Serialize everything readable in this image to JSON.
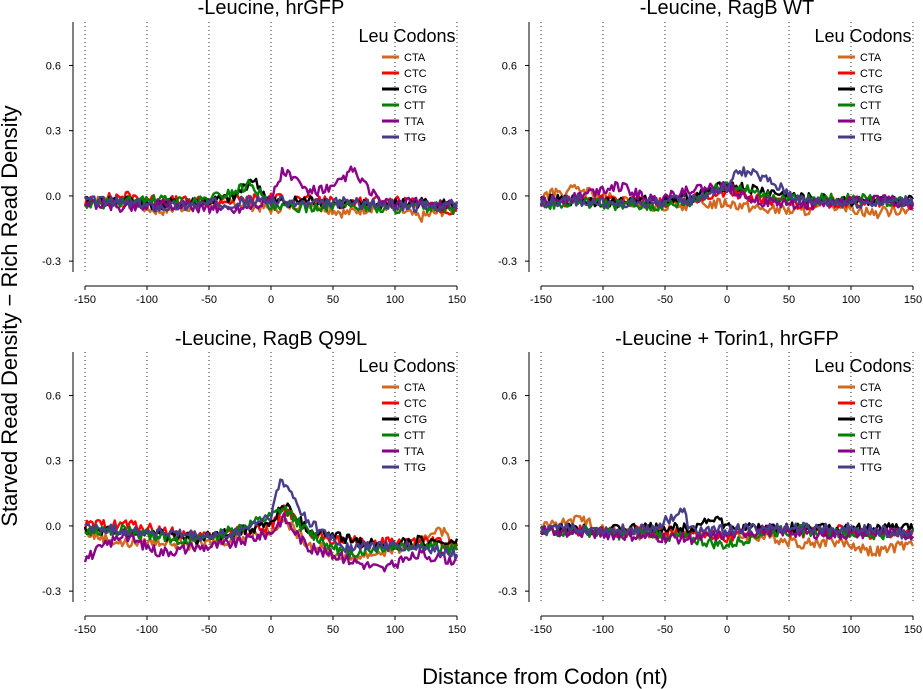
{
  "figure": {
    "ylabel": "Starved Read Density − Rich Read Density",
    "xlabel": "Distance from Codon (nt)"
  },
  "legend": {
    "title": "Leu Codons",
    "placement": "top-right",
    "entries": [
      {
        "name": "CTA",
        "color": "#d2691e"
      },
      {
        "name": "CTC",
        "color": "#ff0000"
      },
      {
        "name": "CTG",
        "color": "#000000"
      },
      {
        "name": "CTT",
        "color": "#008000"
      },
      {
        "name": "TTA",
        "color": "#8b008b"
      },
      {
        "name": "TTG",
        "color": "#483d8b"
      }
    ]
  },
  "chart_data": [
    {
      "type": "line",
      "title": "-Leucine, hrGFP",
      "xlim": [
        -150,
        150
      ],
      "ylim": [
        -0.35,
        0.8
      ],
      "xticks": [
        "-150",
        "-100",
        "-50",
        "0",
        "50",
        "100",
        "150"
      ],
      "yticks": [
        "-0.3",
        "0.0",
        "0.3",
        "0.6"
      ],
      "grid": "vertical dotted at x ticks",
      "series": [
        {
          "name": "CTA",
          "x": [
            -150,
            -120,
            -90,
            -60,
            -30,
            0,
            30,
            60,
            90,
            120,
            150
          ],
          "y": [
            -0.02,
            -0.03,
            -0.07,
            -0.04,
            -0.03,
            -0.06,
            -0.03,
            -0.08,
            -0.04,
            -0.1,
            -0.05
          ]
        },
        {
          "name": "CTC",
          "x": [
            -150,
            -120,
            -90,
            -60,
            -30,
            0,
            30,
            60,
            90,
            120,
            150
          ],
          "y": [
            -0.03,
            0.0,
            -0.02,
            -0.03,
            -0.02,
            -0.01,
            -0.02,
            -0.03,
            -0.02,
            -0.04,
            -0.08
          ]
        },
        {
          "name": "CTG",
          "x": [
            -150,
            -120,
            -90,
            -60,
            -30,
            -15,
            0,
            30,
            60,
            90,
            120,
            150
          ],
          "y": [
            -0.03,
            -0.02,
            -0.04,
            -0.03,
            -0.01,
            0.08,
            -0.03,
            -0.02,
            -0.04,
            -0.04,
            -0.03,
            -0.04
          ]
        },
        {
          "name": "CTT",
          "x": [
            -150,
            -120,
            -90,
            -60,
            -30,
            -15,
            0,
            30,
            60,
            90,
            120,
            150
          ],
          "y": [
            -0.04,
            -0.03,
            -0.02,
            -0.03,
            0.02,
            0.06,
            -0.06,
            -0.05,
            -0.04,
            -0.06,
            -0.05,
            -0.06
          ]
        },
        {
          "name": "TTA",
          "x": [
            -150,
            -120,
            -90,
            -60,
            -30,
            0,
            10,
            30,
            50,
            65,
            90,
            120,
            150
          ],
          "y": [
            -0.03,
            -0.05,
            -0.04,
            -0.05,
            -0.06,
            -0.02,
            0.12,
            0.02,
            0.03,
            0.12,
            -0.04,
            -0.03,
            -0.05
          ]
        },
        {
          "name": "TTG",
          "x": [
            -150,
            -120,
            -90,
            -60,
            -30,
            0,
            30,
            60,
            90,
            120,
            150
          ],
          "y": [
            -0.02,
            -0.03,
            -0.05,
            -0.04,
            -0.03,
            -0.02,
            -0.04,
            -0.03,
            -0.04,
            -0.05,
            -0.04
          ]
        }
      ]
    },
    {
      "type": "line",
      "title": "-Leucine, RagB WT",
      "xlim": [
        -150,
        150
      ],
      "ylim": [
        -0.35,
        0.8
      ],
      "xticks": [
        "-150",
        "-100",
        "-50",
        "0",
        "50",
        "100",
        "150"
      ],
      "yticks": [
        "-0.3",
        "0.0",
        "0.3",
        "0.6"
      ],
      "grid": "vertical dotted at x ticks",
      "series": [
        {
          "name": "CTA",
          "x": [
            -150,
            -120,
            -90,
            -60,
            -30,
            0,
            30,
            60,
            90,
            120,
            150
          ],
          "y": [
            0.0,
            0.03,
            -0.02,
            -0.05,
            -0.04,
            -0.03,
            -0.06,
            -0.07,
            -0.04,
            -0.08,
            -0.05
          ]
        },
        {
          "name": "CTC",
          "x": [
            -150,
            -120,
            -90,
            -60,
            -30,
            0,
            30,
            60,
            90,
            120,
            150
          ],
          "y": [
            -0.03,
            -0.02,
            -0.01,
            -0.03,
            -0.02,
            0.02,
            -0.02,
            -0.04,
            -0.03,
            -0.03,
            -0.04
          ]
        },
        {
          "name": "CTG",
          "x": [
            -150,
            -120,
            -90,
            -60,
            -30,
            0,
            30,
            60,
            90,
            120,
            150
          ],
          "y": [
            -0.02,
            -0.02,
            -0.03,
            -0.02,
            -0.01,
            0.05,
            0.02,
            -0.01,
            -0.02,
            -0.03,
            -0.02
          ]
        },
        {
          "name": "CTT",
          "x": [
            -150,
            -120,
            -90,
            -60,
            -30,
            0,
            30,
            60,
            90,
            120,
            150
          ],
          "y": [
            -0.04,
            -0.03,
            -0.04,
            -0.05,
            -0.03,
            0.06,
            0.0,
            -0.02,
            -0.01,
            -0.02,
            -0.03
          ]
        },
        {
          "name": "TTA",
          "x": [
            -150,
            -120,
            -90,
            -60,
            -30,
            0,
            30,
            60,
            90,
            120,
            150
          ],
          "y": [
            -0.03,
            0.0,
            0.05,
            -0.02,
            0.03,
            0.04,
            -0.03,
            -0.04,
            -0.03,
            -0.01,
            -0.04
          ]
        },
        {
          "name": "TTG",
          "x": [
            -150,
            -120,
            -90,
            -60,
            -30,
            0,
            10,
            30,
            60,
            90,
            120,
            150
          ],
          "y": [
            -0.03,
            -0.02,
            -0.04,
            -0.03,
            -0.02,
            0.04,
            0.12,
            0.08,
            -0.02,
            -0.03,
            -0.03,
            -0.02
          ]
        }
      ]
    },
    {
      "type": "line",
      "title": "-Leucine, RagB Q99L",
      "xlim": [
        -150,
        150
      ],
      "ylim": [
        -0.35,
        0.8
      ],
      "xticks": [
        "-150",
        "-100",
        "-50",
        "0",
        "50",
        "100",
        "150"
      ],
      "yticks": [
        "-0.3",
        "0.0",
        "0.3",
        "0.6"
      ],
      "grid": "vertical dotted at x ticks",
      "series": [
        {
          "name": "CTA",
          "x": [
            -150,
            -120,
            -90,
            -60,
            -30,
            0,
            10,
            30,
            60,
            90,
            120,
            135,
            150
          ],
          "y": [
            -0.03,
            -0.08,
            -0.07,
            -0.09,
            -0.06,
            -0.02,
            0.03,
            -0.08,
            -0.15,
            -0.12,
            -0.08,
            0.0,
            -0.1
          ]
        },
        {
          "name": "CTC",
          "x": [
            -150,
            -120,
            -90,
            -60,
            -30,
            0,
            10,
            30,
            60,
            90,
            120,
            150
          ],
          "y": [
            0.0,
            0.01,
            -0.02,
            -0.05,
            -0.03,
            0.0,
            0.08,
            -0.04,
            -0.07,
            -0.08,
            -0.07,
            -0.09
          ]
        },
        {
          "name": "CTG",
          "x": [
            -150,
            -120,
            -90,
            -60,
            -30,
            0,
            10,
            30,
            60,
            90,
            120,
            150
          ],
          "y": [
            -0.02,
            -0.03,
            -0.04,
            -0.06,
            -0.03,
            0.01,
            0.1,
            -0.02,
            -0.06,
            -0.09,
            -0.07,
            -0.08
          ]
        },
        {
          "name": "CTT",
          "x": [
            -150,
            -120,
            -90,
            -60,
            -30,
            0,
            10,
            30,
            60,
            90,
            120,
            150
          ],
          "y": [
            -0.03,
            -0.02,
            -0.05,
            -0.07,
            -0.02,
            0.04,
            0.08,
            -0.03,
            -0.13,
            -0.1,
            -0.09,
            -0.11
          ]
        },
        {
          "name": "TTA",
          "x": [
            -150,
            -120,
            -90,
            -60,
            -30,
            0,
            10,
            30,
            60,
            90,
            120,
            150
          ],
          "y": [
            -0.15,
            -0.04,
            -0.12,
            -0.1,
            -0.08,
            -0.03,
            0.04,
            -0.1,
            -0.15,
            -0.2,
            -0.13,
            -0.16
          ]
        },
        {
          "name": "TTG",
          "x": [
            -150,
            -120,
            -90,
            -60,
            -30,
            0,
            8,
            15,
            30,
            60,
            90,
            120,
            150
          ],
          "y": [
            -0.01,
            -0.02,
            -0.03,
            -0.05,
            -0.04,
            0.05,
            0.21,
            0.16,
            0.02,
            -0.1,
            -0.09,
            -0.1,
            -0.13
          ]
        }
      ]
    },
    {
      "type": "line",
      "title": "-Leucine + Torin1, hrGFP",
      "xlim": [
        -150,
        150
      ],
      "ylim": [
        -0.35,
        0.8
      ],
      "xticks": [
        "-150",
        "-100",
        "-50",
        "0",
        "50",
        "100",
        "150"
      ],
      "yticks": [
        "-0.3",
        "0.0",
        "0.3",
        "0.6"
      ],
      "grid": "vertical dotted at x ticks",
      "series": [
        {
          "name": "CTA",
          "x": [
            -150,
            -120,
            -90,
            -60,
            -30,
            0,
            30,
            60,
            90,
            120,
            150
          ],
          "y": [
            0.0,
            0.03,
            -0.02,
            -0.05,
            -0.03,
            -0.04,
            -0.05,
            -0.08,
            -0.07,
            -0.12,
            -0.08
          ]
        },
        {
          "name": "CTC",
          "x": [
            -150,
            -120,
            -90,
            -60,
            -30,
            0,
            30,
            60,
            90,
            120,
            150
          ],
          "y": [
            -0.02,
            -0.02,
            -0.03,
            -0.02,
            -0.03,
            -0.05,
            -0.02,
            -0.03,
            -0.02,
            -0.04,
            -0.03
          ]
        },
        {
          "name": "CTG",
          "x": [
            -150,
            -120,
            -90,
            -60,
            -30,
            -10,
            0,
            30,
            60,
            90,
            120,
            150
          ],
          "y": [
            -0.02,
            -0.01,
            -0.02,
            -0.01,
            -0.01,
            0.04,
            -0.01,
            -0.01,
            -0.01,
            -0.02,
            -0.01,
            -0.01
          ]
        },
        {
          "name": "CTT",
          "x": [
            -150,
            -120,
            -90,
            -60,
            -30,
            0,
            30,
            60,
            90,
            120,
            150
          ],
          "y": [
            -0.03,
            -0.02,
            -0.04,
            -0.03,
            -0.06,
            -0.09,
            -0.03,
            -0.02,
            -0.03,
            -0.04,
            -0.03
          ]
        },
        {
          "name": "TTA",
          "x": [
            -150,
            -120,
            -90,
            -60,
            -30,
            0,
            30,
            60,
            90,
            120,
            150
          ],
          "y": [
            -0.02,
            -0.03,
            -0.04,
            -0.05,
            -0.06,
            -0.04,
            -0.02,
            -0.03,
            -0.04,
            -0.03,
            -0.04
          ]
        },
        {
          "name": "TTG",
          "x": [
            -150,
            -120,
            -90,
            -60,
            -30,
            -35,
            0,
            30,
            60,
            90,
            120,
            150
          ],
          "y": [
            -0.02,
            -0.01,
            -0.02,
            -0.01,
            -0.02,
            0.07,
            -0.02,
            -0.01,
            -0.01,
            -0.01,
            -0.02,
            -0.04
          ]
        }
      ]
    }
  ]
}
